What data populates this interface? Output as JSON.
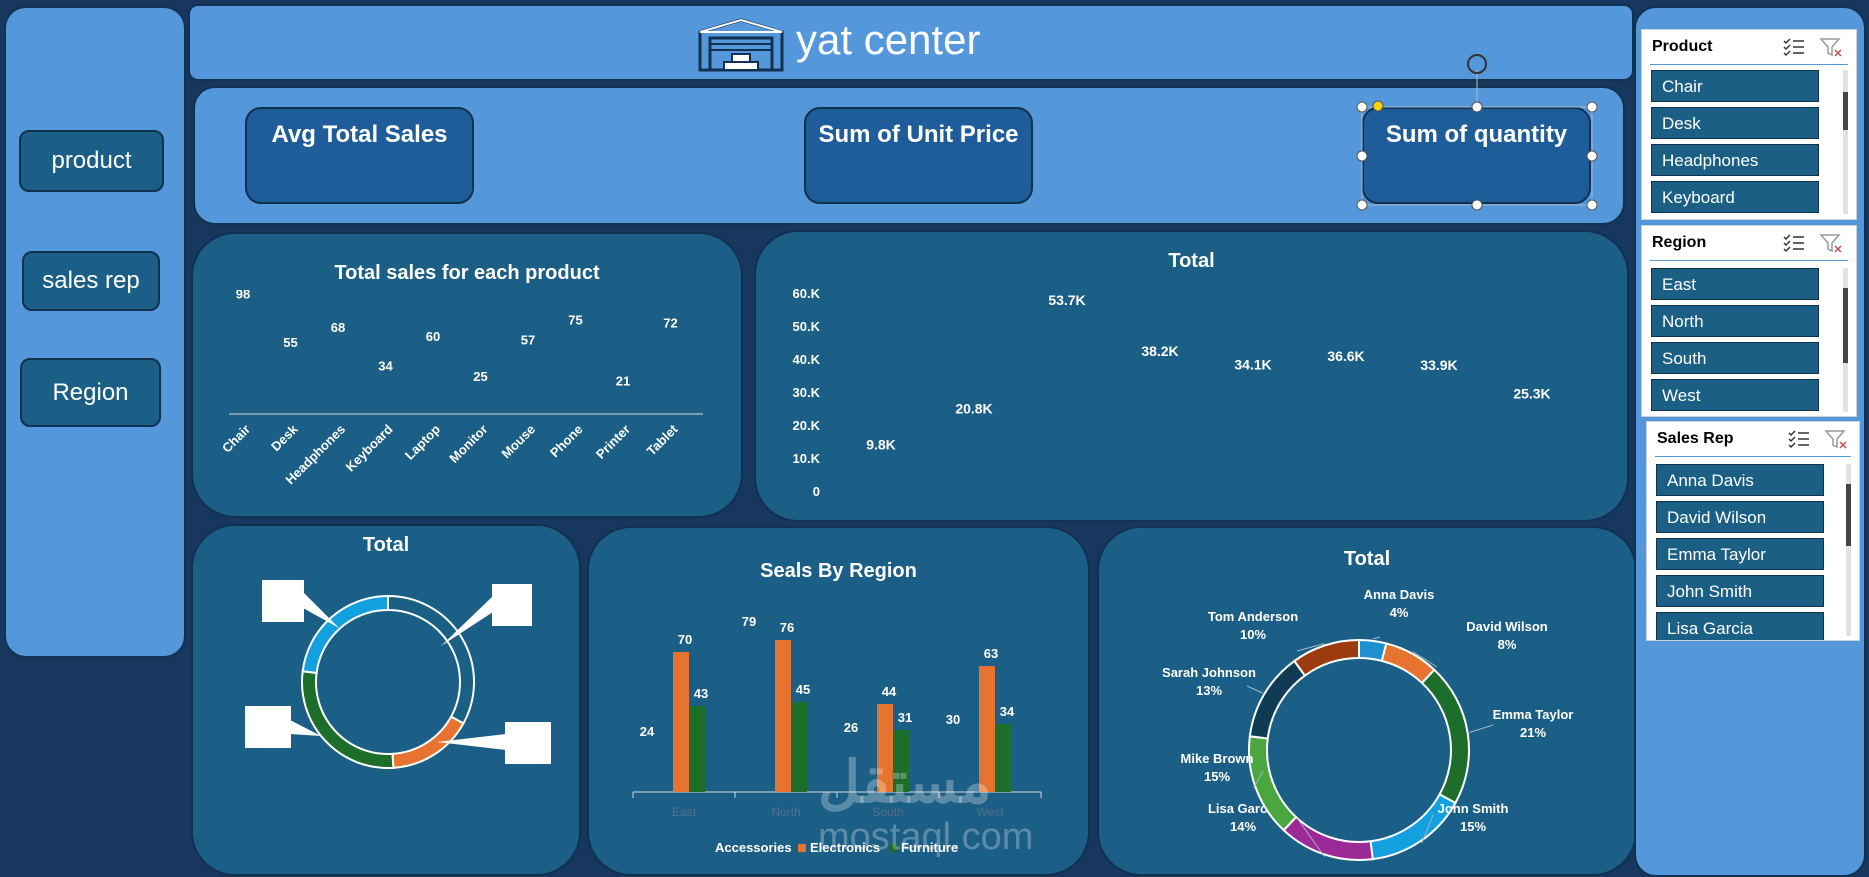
{
  "header": {
    "title": "yat center",
    "logo_icon": "warehouse-icon"
  },
  "nav": {
    "buttons": [
      "product",
      "sales rep",
      "Region"
    ]
  },
  "kpis": {
    "avg_total_sales": "Avg Total Sales",
    "sum_unit_price": "Sum of Unit Price",
    "sum_quantity": "Sum of quantity"
  },
  "chart_data": [
    {
      "type": "bar",
      "title": "Total sales for each product",
      "categories": [
        "Chair",
        "Desk",
        "Headphones",
        "Keyboard",
        "Laptop",
        "Monitor",
        "Mouse",
        "Phone",
        "Printer",
        "Tablet"
      ],
      "values": [
        98,
        55,
        68,
        34,
        60,
        25,
        57,
        75,
        21,
        72
      ],
      "data_labels": [
        "98",
        "55",
        "68",
        "34",
        "60",
        "25",
        "57",
        "75",
        "21",
        "72"
      ]
    },
    {
      "type": "line",
      "title": "Total",
      "yticks": [
        "60.K",
        "50.K",
        "40.K",
        "30.K",
        "20.K",
        "10.K",
        "0"
      ],
      "ylim": [
        0,
        60000
      ],
      "values": [
        9800,
        20800,
        53700,
        38200,
        34100,
        36600,
        33900,
        25300
      ],
      "data_labels": [
        "9.8K",
        "20.8K",
        "53.7K",
        "38.2K",
        "34.1K",
        "36.6K",
        "33.9K",
        "25.3K"
      ]
    },
    {
      "type": "pie",
      "title": "Total",
      "slices": [
        {
          "value": 33,
          "color": "#1a5f84"
        },
        {
          "value": 16,
          "color": "#e6732f"
        },
        {
          "value": 28,
          "color": "#1e6e2b"
        },
        {
          "value": 23,
          "color": "#12a1de"
        }
      ]
    },
    {
      "type": "bar",
      "title": "Seals By Region",
      "categories": [
        "East",
        "North",
        "South",
        "West"
      ],
      "series": [
        {
          "name": "Accessories",
          "values": [
            24,
            79,
            26,
            30
          ],
          "color": "#1c5f86"
        },
        {
          "name": "Electronics",
          "values": [
            70,
            76,
            44,
            63
          ],
          "color": "#e6732f"
        },
        {
          "name": "Furniture",
          "values": [
            43,
            45,
            31,
            34
          ],
          "color": "#1e6e2b"
        }
      ],
      "ylim": [
        0,
        90
      ]
    },
    {
      "type": "pie",
      "title": "Total",
      "slices": [
        {
          "name": "Anna Davis",
          "value": 4,
          "label": "Anna Davis",
          "pct": "4%",
          "color": "#1e8fcf"
        },
        {
          "name": "David Wilson",
          "value": 8,
          "label": "David Wilson",
          "pct": "8%",
          "color": "#e6732f"
        },
        {
          "name": "Emma Taylor",
          "value": 21,
          "label": "Emma Taylor",
          "pct": "21%",
          "color": "#1e6e2b"
        },
        {
          "name": "John Smith",
          "value": 15,
          "label": "John Smith",
          "pct": "15%",
          "color": "#12a1de"
        },
        {
          "name": "Lisa Garcia",
          "value": 14,
          "label": "Lisa Garcia",
          "pct": "14%",
          "color": "#9c2a96"
        },
        {
          "name": "Mike Brown",
          "value": 15,
          "label": "Mike Brown",
          "pct": "15%",
          "color": "#4aa63e"
        },
        {
          "name": "Sarah Johnson",
          "value": 13,
          "label": "Sarah Johnson",
          "pct": "13%",
          "color": "#0f3b54"
        },
        {
          "name": "Tom Anderson",
          "value": 10,
          "label": "Tom Anderson",
          "pct": "10%",
          "color": "#9c3b0e"
        }
      ]
    }
  ],
  "slicers": [
    {
      "title": "Product",
      "items": [
        "Chair",
        "Desk",
        "Headphones",
        "Keyboard"
      ]
    },
    {
      "title": "Region",
      "items": [
        "East",
        "North",
        "South",
        "West"
      ]
    },
    {
      "title": "Sales Rep",
      "items": [
        "Anna Davis",
        "David Wilson",
        "Emma Taylor",
        "John Smith",
        "Lisa Garcia"
      ]
    }
  ],
  "watermark": {
    "arabic": "مستقل",
    "latin": "mostaql.com"
  }
}
